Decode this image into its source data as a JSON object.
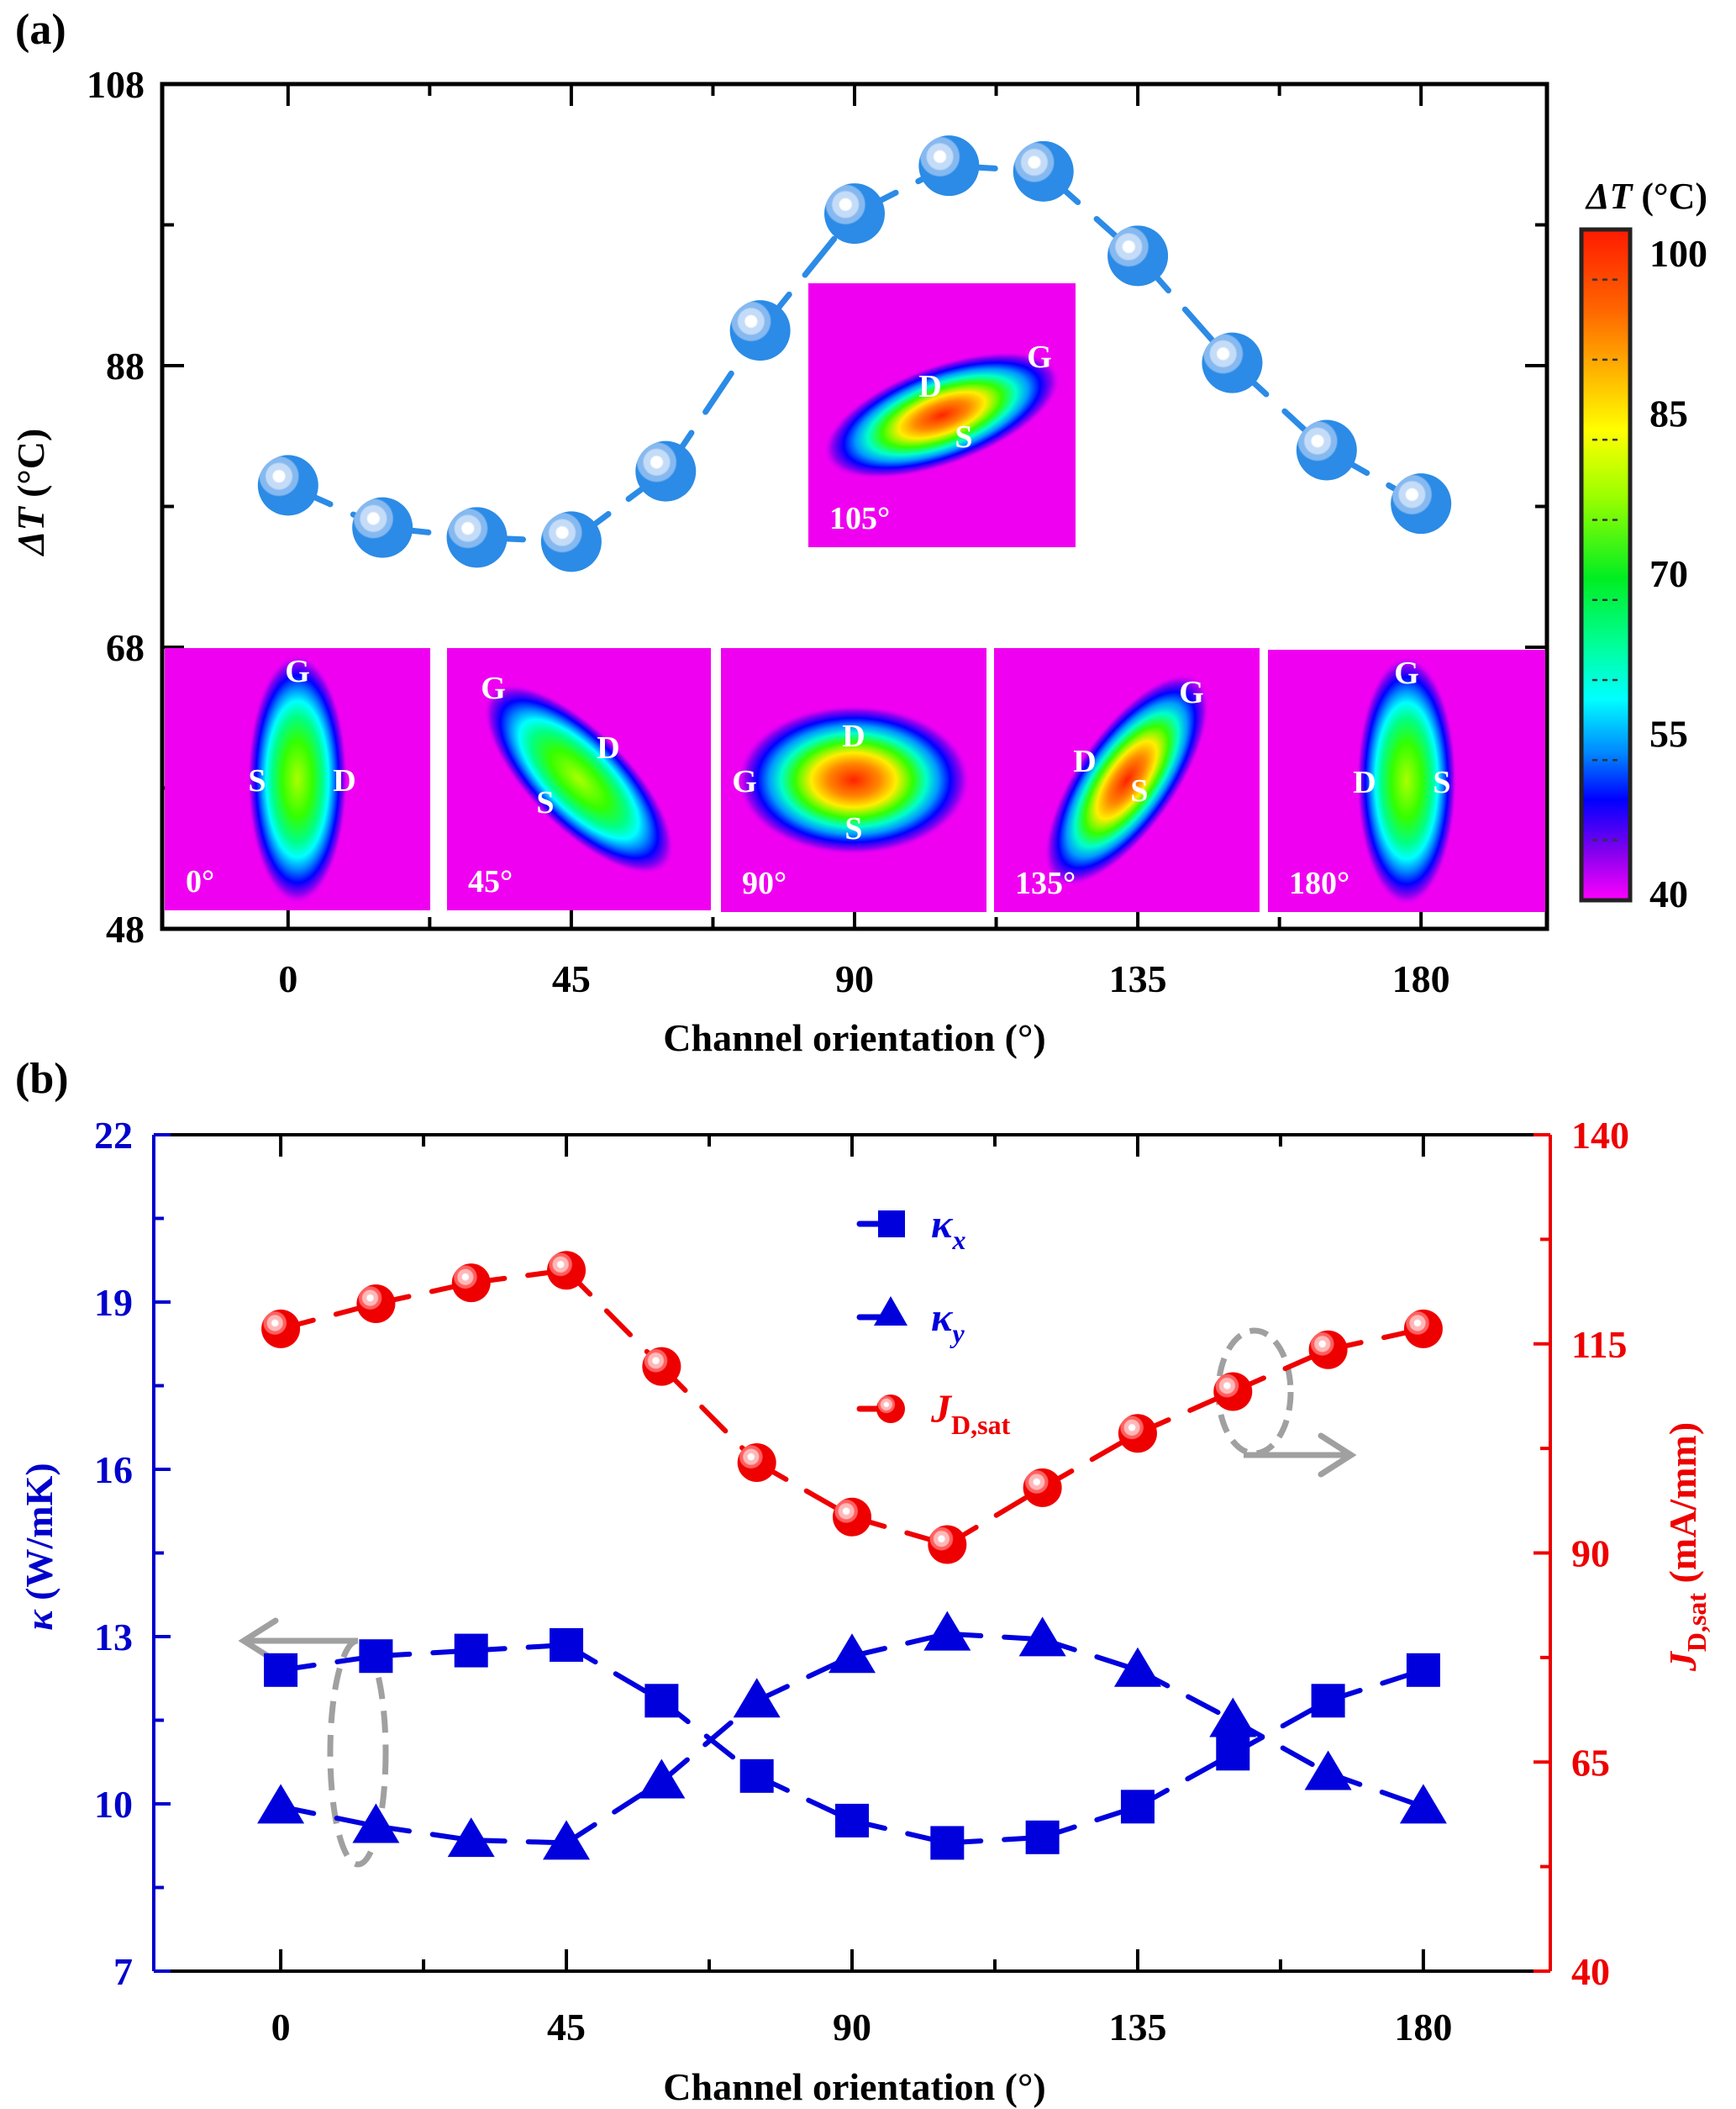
{
  "chart_data": [
    {
      "panel_label": "(a)",
      "type": "scatter",
      "title": "",
      "xlabel": "Channel orientation (°)",
      "ylabel": "ΔT (°C)",
      "ylabel_symbol": "ΔT",
      "ylabel_unit": " (°C)",
      "xlim": [
        -20,
        200
      ],
      "ylim": [
        48,
        108
      ],
      "x_ticks": [
        0,
        45,
        90,
        135,
        180
      ],
      "y_ticks": [
        48,
        68,
        88,
        108
      ],
      "grid": false,
      "series": [
        {
          "name": "ΔT",
          "color": "#2b8be6",
          "x": [
            0,
            15,
            30,
            45,
            60,
            75,
            90,
            105,
            120,
            135,
            150,
            165,
            180
          ],
          "values": [
            79.5,
            76.5,
            75.8,
            75.5,
            80.5,
            90.5,
            98.8,
            102.2,
            101.8,
            95.8,
            88.2,
            82.0,
            78.2
          ]
        }
      ],
      "colorbar": {
        "title": "ΔT (°C)",
        "title_symbol": "ΔT",
        "title_unit": " (°C)",
        "range": [
          40,
          100
        ],
        "ticks": [
          "100",
          "85",
          "70",
          "55",
          "40"
        ],
        "tick_values": [
          100,
          85,
          70,
          55,
          40
        ],
        "colors": [
          "#ff1a00",
          "#ff8800",
          "#ffee00",
          "#66ff00",
          "#00ee44",
          "#00ffaa",
          "#00ffff",
          "#0088ff",
          "#0000ff",
          "#8800ff",
          "#ff00ff"
        ]
      },
      "insets": [
        {
          "label": "0°",
          "angle": 0,
          "labels": [
            "G",
            "S",
            "D"
          ],
          "peak_color": "#b8ff00"
        },
        {
          "label": "45°",
          "angle": 45,
          "labels": [
            "G",
            "D",
            "S"
          ],
          "peak_color": "#44ff00"
        },
        {
          "label": "90°",
          "angle": 90,
          "labels": [
            "D",
            "G",
            "S"
          ],
          "peak_color": "#ff3300"
        },
        {
          "label": "135°",
          "angle": 135,
          "labels": [
            "G",
            "D",
            "S"
          ],
          "peak_color": "#ff4400"
        },
        {
          "label": "180°",
          "angle": 180,
          "labels": [
            "G",
            "D",
            "S"
          ],
          "peak_color": "#88ff00"
        },
        {
          "label": "105°",
          "angle": 105,
          "labels": [
            "G",
            "D",
            "S"
          ],
          "peak_color": "#ff2200"
        }
      ]
    },
    {
      "panel_label": "(b)",
      "type": "line",
      "title": "",
      "xlabel": "Channel orientation (°)",
      "ylabel_left": "κ (W/mK)",
      "ylabel_left_symbol": "κ",
      "ylabel_left_unit": " (W/mK)",
      "ylabel_right": "JD,sat (mA/mm)",
      "ylabel_right_symbol": "J",
      "ylabel_right_sub": "D,sat",
      "ylabel_right_unit": " (mA/mm)",
      "xlim": [
        -20,
        200
      ],
      "ylim_left": [
        7,
        22
      ],
      "ylim_right": [
        40,
        140
      ],
      "x_ticks": [
        0,
        45,
        90,
        135,
        180
      ],
      "y_ticks_left": [
        7,
        10,
        13,
        16,
        19,
        22
      ],
      "y_ticks_right": [
        40,
        65,
        90,
        115,
        140
      ],
      "grid": false,
      "legend_position": "top-center",
      "x": [
        0,
        15,
        30,
        45,
        60,
        75,
        90,
        105,
        120,
        135,
        150,
        165,
        180
      ],
      "series": [
        {
          "name": "κx",
          "symbol": "κ",
          "sub": "x",
          "axis": "left",
          "marker": "square",
          "color": "#0000dd",
          "values": [
            12.4,
            12.65,
            12.75,
            12.85,
            11.85,
            10.5,
            9.7,
            9.3,
            9.4,
            9.95,
            10.9,
            11.85,
            12.4
          ]
        },
        {
          "name": "κy",
          "symbol": "κ",
          "sub": "y",
          "axis": "left",
          "marker": "triangle",
          "color": "#0000dd",
          "values": [
            9.95,
            9.6,
            9.35,
            9.3,
            10.4,
            11.85,
            12.65,
            13.05,
            12.95,
            12.4,
            11.5,
            10.55,
            9.95
          ]
        },
        {
          "name": "JD,sat",
          "symbol": "J",
          "sub": "D,sat",
          "axis": "right",
          "marker": "sphere",
          "color": "#ee0000",
          "values": [
            116.8,
            119.8,
            122.3,
            123.8,
            112.3,
            100.8,
            94.3,
            91.0,
            97.8,
            104.3,
            109.3,
            114.3,
            116.8
          ]
        }
      ],
      "annotations": [
        {
          "type": "ellipse-arrow",
          "direction": "left",
          "target_axis": "left",
          "x": 15
        },
        {
          "type": "ellipse-arrow",
          "direction": "right",
          "target_axis": "right",
          "x": 150
        }
      ]
    }
  ]
}
